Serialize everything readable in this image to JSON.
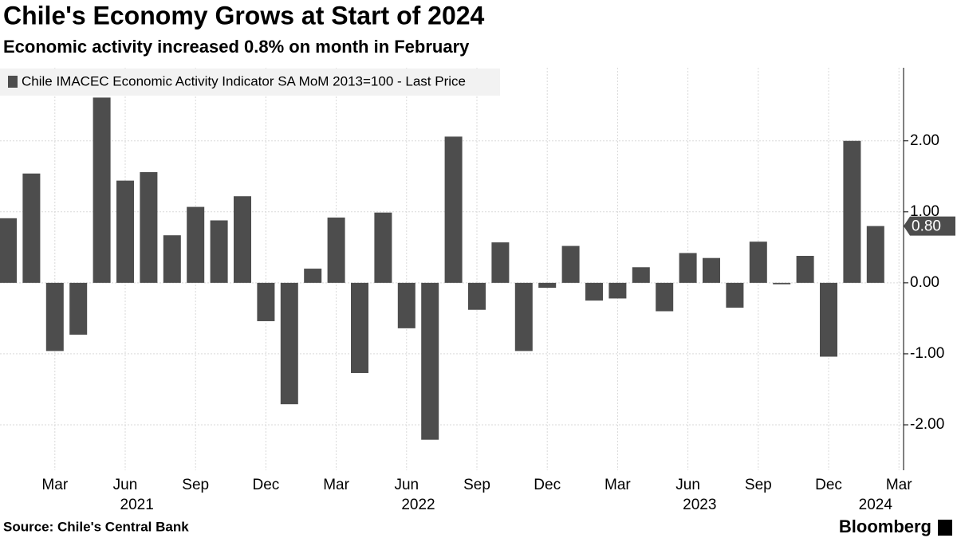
{
  "chart_data": {
    "type": "bar",
    "title": "Chile's Economy Grows at Start of 2024",
    "subtitle": "Economic activity increased 0.8% on month in February",
    "source": "Source: Chile's Central Bank",
    "brand": "Bloomberg",
    "categories": [
      null,
      null,
      "Mar",
      null,
      null,
      "Jun",
      null,
      null,
      "Sep",
      null,
      null,
      "Dec",
      null,
      null,
      "Mar",
      null,
      null,
      "Jun",
      null,
      null,
      "Sep",
      null,
      null,
      "Dec",
      null,
      null,
      "Mar",
      null,
      null,
      "Jun",
      null,
      null,
      "Sep",
      null,
      null,
      "Dec",
      null,
      null,
      "Mar"
    ],
    "years": [
      "2021",
      "2022",
      "2023",
      "2024"
    ],
    "series": [
      {
        "name": "Chile IMACEC Economic Activity Indicator SA MoM 2013=100 - Last Price",
        "color": "#4d4d4d",
        "values": [
          0.91,
          1.54,
          -0.96,
          -0.73,
          2.61,
          1.44,
          1.56,
          0.67,
          1.07,
          0.88,
          1.22,
          -0.54,
          -1.71,
          0.2,
          0.92,
          -1.27,
          0.99,
          -0.64,
          -2.21,
          2.06,
          -0.38,
          0.57,
          -0.96,
          -0.07,
          0.52,
          -0.25,
          -0.22,
          0.22,
          -0.4,
          0.42,
          0.35,
          -0.35,
          0.58,
          -0.02,
          0.38,
          -1.04,
          2.0,
          0.8,
          null
        ],
        "value_labels": [
          null,
          null,
          null,
          null,
          null,
          null,
          null,
          null,
          null,
          null,
          null,
          null,
          null,
          null,
          null,
          null,
          null,
          null,
          null,
          null,
          null,
          null,
          null,
          null,
          null,
          null,
          null,
          null,
          null,
          null,
          null,
          null,
          null,
          null,
          null,
          null,
          null,
          "0.80",
          null
        ]
      }
    ],
    "ylim": [
      -2.64,
      3.03
    ],
    "yticks": [
      {
        "value": -2,
        "label": "-2.00"
      },
      {
        "value": -1,
        "label": "-1.00"
      },
      {
        "value": 0,
        "label": "0.00"
      },
      {
        "value": 1,
        "label": "1.00"
      },
      {
        "value": 2,
        "label": "2.00"
      }
    ],
    "grid": true
  }
}
